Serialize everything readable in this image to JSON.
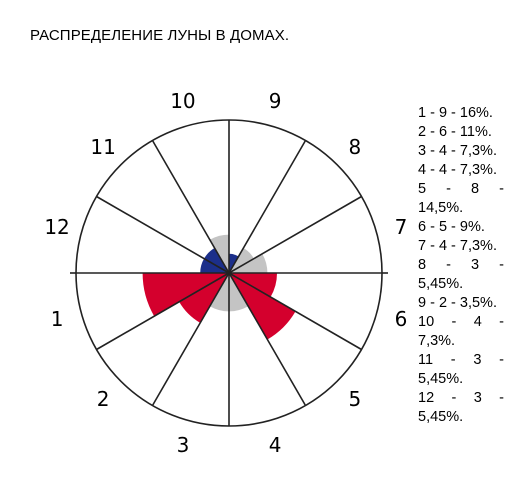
{
  "title": "РАСПРЕДЕЛЕНИЕ ЛУНЫ В ДОМАХ.",
  "colors": {
    "red": "#d4002d",
    "navy": "#1c2f8a",
    "gray": "#c4c4c4",
    "line": "#222222"
  },
  "legend": [
    "1 - 9 - 16%.",
    "2 - 6 - 11%.",
    "3 - 4 - 7,3%.",
    "4 - 4 - 7,3%.",
    "5 - 8 - 14,5%.",
    "6 - 5 - 9%.",
    "7 - 4 - 7,3%.",
    "8 - 3 - 5,45%.",
    "9 - 2 - 3,5%.",
    "10 - 4 - 7,3%.",
    "11 - 3 - 5,45%.",
    "12 - 3 - 5,45%."
  ],
  "chart_data": {
    "type": "polar-area",
    "categories": [
      "1",
      "2",
      "3",
      "4",
      "5",
      "6",
      "7",
      "8",
      "9",
      "10",
      "11",
      "12"
    ],
    "values": [
      9,
      6,
      4,
      4,
      8,
      5,
      4,
      3,
      2,
      4,
      3,
      3
    ],
    "percent": [
      16,
      11,
      7.3,
      7.3,
      14.5,
      9,
      7.3,
      5.45,
      3.5,
      7.3,
      5.45,
      5.45
    ],
    "house_colors": [
      "red",
      "red",
      "gray",
      "gray",
      "red",
      "red",
      "gray",
      "gray",
      "navy",
      "gray",
      "navy",
      "navy"
    ]
  }
}
